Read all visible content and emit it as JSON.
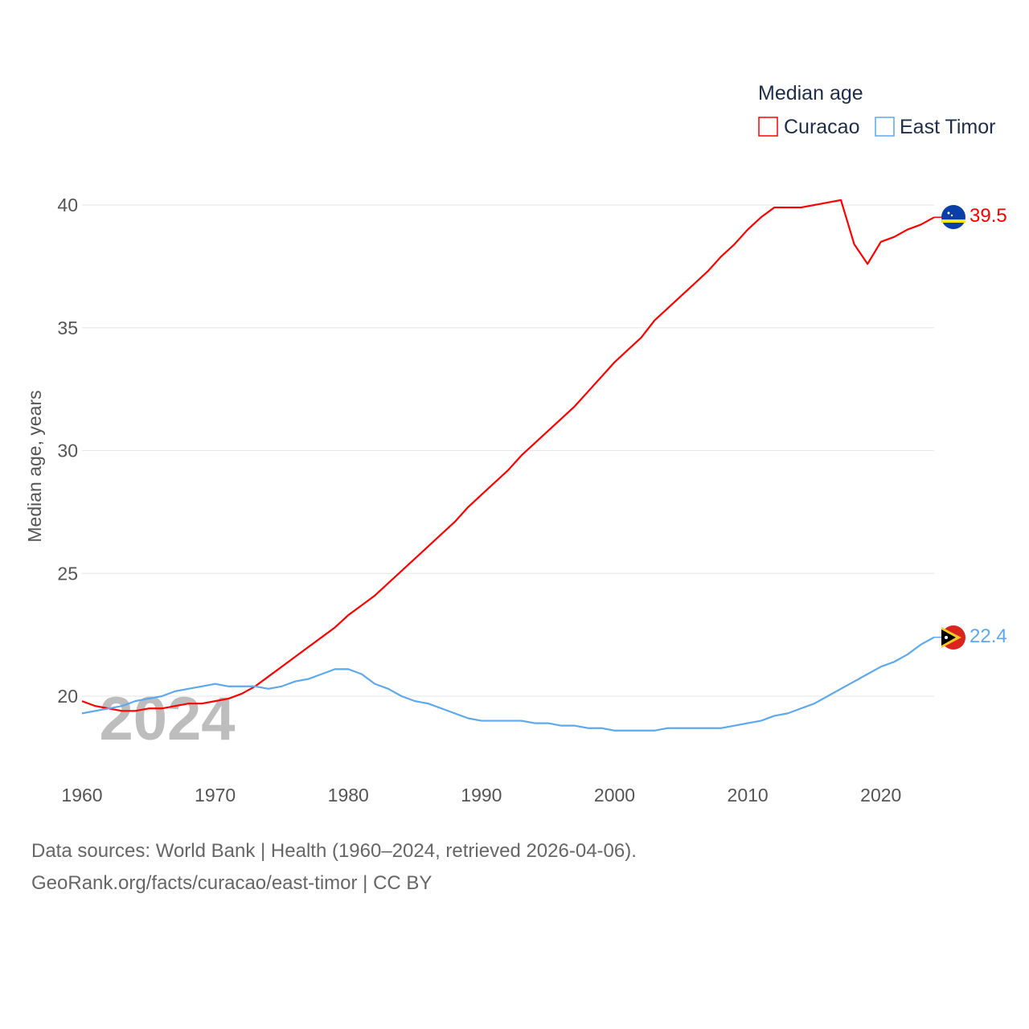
{
  "chart_data": {
    "type": "line",
    "title": "Median age",
    "ylabel": "Median age, years",
    "xlabel": "",
    "ylim": [
      20,
      40
    ],
    "xlim": [
      1960,
      2024
    ],
    "yticks": [
      "20",
      "25",
      "30",
      "35",
      "40"
    ],
    "xticks": [
      "1960",
      "1970",
      "1980",
      "1990",
      "2000",
      "2010",
      "2020"
    ],
    "watermark_year": "2024",
    "grid": true,
    "legend_position": "top-right",
    "x": [
      1960,
      1961,
      1962,
      1963,
      1964,
      1965,
      1966,
      1967,
      1968,
      1969,
      1970,
      1971,
      1972,
      1973,
      1974,
      1975,
      1976,
      1977,
      1978,
      1979,
      1980,
      1981,
      1982,
      1983,
      1984,
      1985,
      1986,
      1987,
      1988,
      1989,
      1990,
      1991,
      1992,
      1993,
      1994,
      1995,
      1996,
      1997,
      1998,
      1999,
      2000,
      2001,
      2002,
      2003,
      2004,
      2005,
      2006,
      2007,
      2008,
      2009,
      2010,
      2011,
      2012,
      2013,
      2014,
      2015,
      2016,
      2017,
      2018,
      2019,
      2020,
      2021,
      2022,
      2023,
      2024
    ],
    "series": [
      {
        "name": "Curacao",
        "color": "#ff0000",
        "end_label": "39.5",
        "values": [
          19.8,
          19.6,
          19.5,
          19.4,
          19.4,
          19.5,
          19.5,
          19.6,
          19.7,
          19.7,
          19.8,
          19.9,
          20.1,
          20.4,
          20.8,
          21.2,
          21.6,
          22.0,
          22.4,
          22.8,
          23.3,
          23.7,
          24.1,
          24.6,
          25.1,
          25.6,
          26.1,
          26.6,
          27.1,
          27.7,
          28.2,
          28.7,
          29.2,
          29.8,
          30.3,
          30.8,
          31.3,
          31.8,
          32.4,
          33.0,
          33.6,
          34.1,
          34.6,
          35.3,
          35.8,
          36.3,
          36.8,
          37.3,
          37.9,
          38.4,
          39.0,
          39.5,
          39.9,
          39.9,
          39.9,
          40.0,
          40.1,
          40.2,
          38.4,
          37.6,
          38.5,
          38.7,
          39.0,
          39.2,
          39.5
        ]
      },
      {
        "name": "East Timor",
        "color": "#5ea8ee",
        "end_label": "22.4",
        "values": [
          19.3,
          19.4,
          19.5,
          19.6,
          19.8,
          19.9,
          20.0,
          20.2,
          20.3,
          20.4,
          20.5,
          20.4,
          20.4,
          20.4,
          20.3,
          20.4,
          20.6,
          20.7,
          20.9,
          21.1,
          21.1,
          20.9,
          20.5,
          20.3,
          20.0,
          19.8,
          19.7,
          19.5,
          19.3,
          19.1,
          19.0,
          19.0,
          19.0,
          19.0,
          18.9,
          18.9,
          18.8,
          18.8,
          18.7,
          18.7,
          18.6,
          18.6,
          18.6,
          18.6,
          18.7,
          18.7,
          18.7,
          18.7,
          18.7,
          18.8,
          18.9,
          19.0,
          19.2,
          19.3,
          19.5,
          19.7,
          20.0,
          20.3,
          20.6,
          20.9,
          21.2,
          21.4,
          21.7,
          22.1,
          22.4
        ]
      }
    ]
  },
  "footer": {
    "line1": "Data sources: World Bank | Health (1960–2024, retrieved 2026-04-06).",
    "line2": "GeoRank.org/facts/curacao/east-timor | CC BY"
  }
}
